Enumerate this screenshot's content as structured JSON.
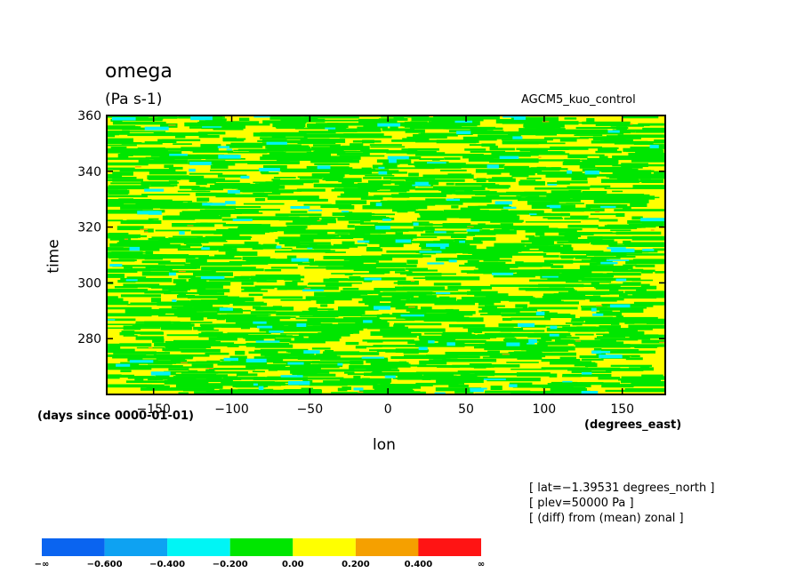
{
  "chart_data": {
    "type": "heatmap",
    "title": "omega",
    "units": "(Pa s-1)",
    "experiment": "AGCM5_kuo_control",
    "xlabel": "lon",
    "x_units": "(degrees_east)",
    "ylabel": "time",
    "y_units": "(days since 0000-01-01)",
    "xlim": [
      -180,
      177.5
    ],
    "ylim": [
      260,
      360
    ],
    "x_ticks": [
      -150,
      -100,
      -50,
      0,
      50,
      100,
      150
    ],
    "x_tick_labels": [
      "−150",
      "−100",
      "−50",
      "0",
      "50",
      "100",
      "150"
    ],
    "y_ticks": [
      280,
      300,
      320,
      340,
      360
    ],
    "y_tick_labels": [
      "280",
      "300",
      "320",
      "340",
      "360"
    ],
    "info_lines": [
      "[ lat=−1.39531 degrees_north ]",
      "[ plev=50000 Pa ]",
      "[ (diff) from (mean) zonal ]"
    ],
    "colorbar": {
      "colors": [
        "#0a64f0",
        "#0ea2f2",
        "#00f5f5",
        "#00e600",
        "#ffff00",
        "#f5a000",
        "#ff1414"
      ],
      "labels": [
        "−∞",
        "−0.600",
        "−0.400",
        "−0.200",
        "0.00",
        "0.200",
        "0.400",
        "∞"
      ]
    },
    "field_description": "Mostly yellow (0.00 to 0.200) with abundant green (-0.200 to 0.00) zonally-elongated streaks, sparse cyan (-0.400 to -0.200) patches and rare orange/red specks"
  }
}
